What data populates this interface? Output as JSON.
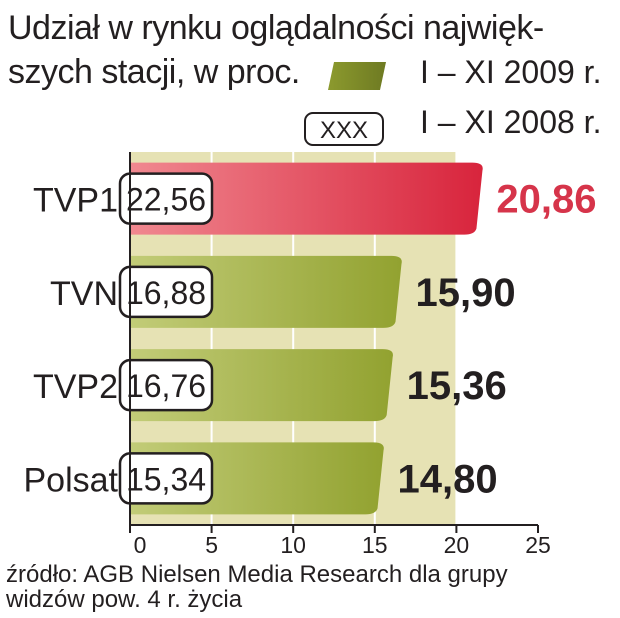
{
  "title_line1": "Udział w rynku oglądalności najwięk-",
  "title_line2": "szych stacji, w proc.",
  "legend": {
    "current": "I – XI 2009 r.",
    "previous_box": "XXX",
    "previous": "I – XI 2008 r."
  },
  "source_line1": "źródło: AGB Nielsen Media Research dla grupy",
  "source_line2": "widzów pow. 4 r. życia",
  "colors": {
    "highlight": "#d6344a",
    "bar_green": "#a4b43e",
    "plot_bg": "#e6e2b4",
    "text": "#231f20"
  },
  "chart_data": {
    "type": "bar",
    "orientation": "horizontal",
    "categories": [
      "TVP1",
      "TVN",
      "TVP2",
      "Polsat"
    ],
    "series": [
      {
        "name": "I – XI 2009 r.",
        "values": [
          20.86,
          15.9,
          15.36,
          14.8
        ],
        "labels": [
          "20,86",
          "15,90",
          "15,36",
          "14,80"
        ]
      },
      {
        "name": "I – XI 2008 r.",
        "values": [
          22.56,
          16.88,
          16.76,
          15.34
        ],
        "labels": [
          "22,56",
          "16,88",
          "16,76",
          "15,34"
        ]
      }
    ],
    "xlim": [
      0,
      25
    ],
    "xticks": [
      "0",
      "5",
      "10",
      "15",
      "20",
      "25"
    ],
    "tick_values": [
      0,
      5,
      10,
      15,
      20,
      25
    ],
    "grid": true,
    "legend_position": "top-right"
  }
}
